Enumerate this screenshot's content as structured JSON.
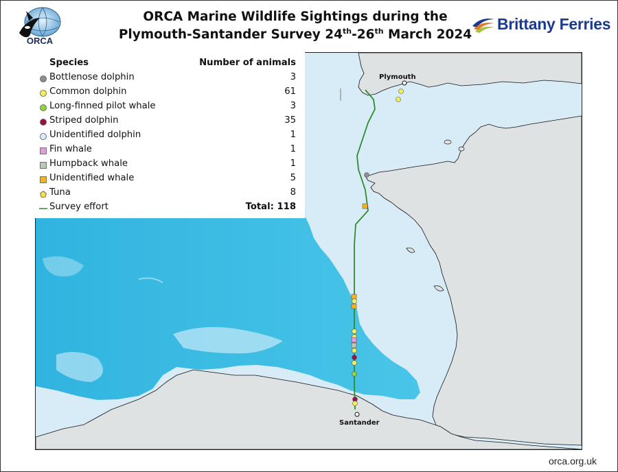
{
  "title": {
    "line1": "ORCA Marine Wildlife Sightings during the",
    "line2_prefix": "Plymouth-Santander Survey 24",
    "sup1": "th",
    "mid": "-26",
    "sup2": "th",
    "line2_suffix": " March 2024"
  },
  "logos": {
    "orca_text": "ORCA",
    "brittany_ferries_text": "Brittany Ferries"
  },
  "legend": {
    "species_header": "Species",
    "count_header": "Number of animals",
    "items": [
      {
        "name": "Bottlenose dolphin",
        "count": "3",
        "symbol": "circle",
        "color": "#8e8e8e"
      },
      {
        "name": "Common dolphin",
        "count": "61",
        "symbol": "circle",
        "color": "#f2ef5a"
      },
      {
        "name": "Long-finned pilot whale",
        "count": "3",
        "symbol": "circle",
        "color": "#8fd63a"
      },
      {
        "name": "Striped dolphin",
        "count": "35",
        "symbol": "circle",
        "color": "#9c1048"
      },
      {
        "name": "Unidentified dolphin",
        "count": "1",
        "symbol": "circle",
        "color": "#d9ecf7"
      },
      {
        "name": "Fin whale",
        "count": "1",
        "symbol": "square",
        "color": "#e49ce0"
      },
      {
        "name": "Humpback whale",
        "count": "1",
        "symbol": "square",
        "color": "#b7c9b7"
      },
      {
        "name": "Unidentified whale",
        "count": "5",
        "symbol": "square",
        "color": "#f4b323"
      },
      {
        "name": "Tuna",
        "count": "8",
        "symbol": "pentagon",
        "color": "#f6e04a"
      }
    ],
    "effort_label": "Survey effort",
    "effort_color": "#2e8b2e",
    "total_label": "Total: 118"
  },
  "map": {
    "places": {
      "plymouth": "Plymouth",
      "santander": "Santander"
    },
    "colors": {
      "land": "#dfe2e3",
      "shelf": "#d8ecf8",
      "deep": "#3fbfe3",
      "effort": "#2e8b2e"
    }
  },
  "footer": "orca.org.uk"
}
